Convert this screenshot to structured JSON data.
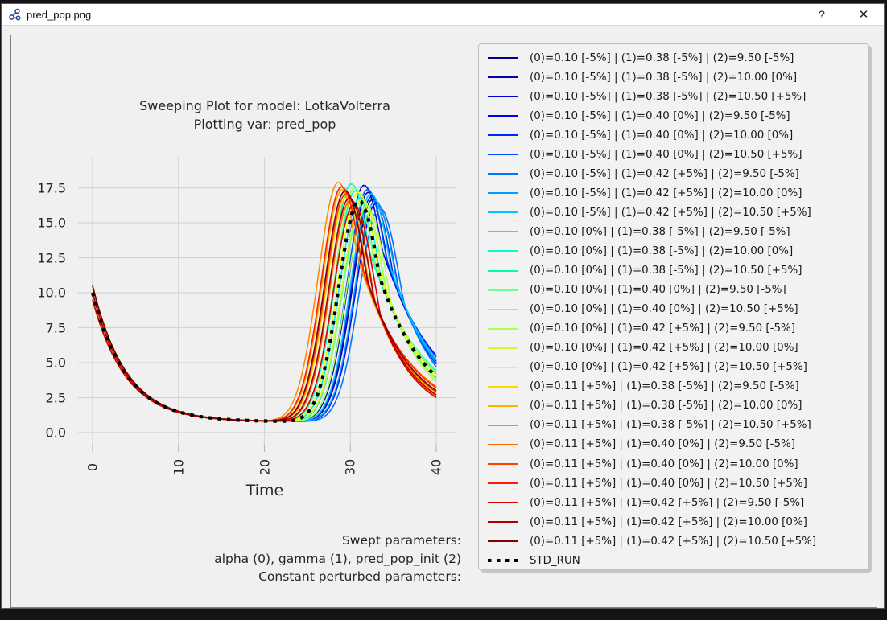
{
  "window": {
    "title": "pred_pop.png",
    "help_label": "?",
    "close_label": "✕"
  },
  "plot": {
    "title_line1": "Sweeping Plot for model: LotkaVolterra",
    "title_line2": "Plotting var: pred_pop",
    "xlabel": "Time",
    "x_ticks": [
      "0",
      "10",
      "20",
      "30",
      "40"
    ],
    "y_ticks": [
      "17.5",
      "15.0",
      "12.5",
      "10.0",
      "7.5",
      "5.0",
      "2.5",
      "0.0"
    ],
    "annotation_lines": [
      "Swept parameters:",
      "alpha (0), gamma (1), pred_pop_init (2)",
      "Constant perturbed parameters:"
    ]
  },
  "chart_data": {
    "type": "line",
    "title": "Sweeping Plot for model: LotkaVolterra — Plotting var: pred_pop",
    "xlabel": "Time",
    "ylabel": "",
    "x_range": [
      0,
      40
    ],
    "x_tick_values": [
      0,
      10,
      20,
      30,
      40
    ],
    "y_tick_values": [
      0.0,
      2.5,
      5.0,
      7.5,
      10.0,
      12.5,
      15.0,
      17.5
    ],
    "grid": true,
    "legend_position": "upper right, outside plot",
    "curve_shape_note": "All curves start at pred_pop_init (~9.5-10.5) at t=0, decay to a minimum of ~0.8 between t=10 and t=22, rise to a single sharp peak (~16.1-17.9) between t=28.6 and t=33.4, then fall to ~2.5-5.5 at t=40. Curves with alpha +5% (reds) peak earliest, alpha -5% (blues) peak latest.",
    "minimum_value": 0.8,
    "series": [
      {
        "label": "(0)=0.10 [-5%] | (1)=0.38 [-5%] | (2)=9.50 [-5%]",
        "color": "#000080",
        "init": 9.5,
        "peak_time": 32.6,
        "peak_value": 16.7,
        "end_value": 5.0
      },
      {
        "label": "(0)=0.10 [-5%] | (1)=0.38 [-5%] | (2)=10.00 [0%]",
        "color": "#0000AE",
        "init": 10.0,
        "peak_time": 32.1,
        "peak_value": 17.2,
        "end_value": 5.2
      },
      {
        "label": "(0)=0.10 [-5%] | (1)=0.38 [-5%] | (2)=10.50 [+5%]",
        "color": "#0000DC",
        "init": 10.5,
        "peak_time": 31.6,
        "peak_value": 17.7,
        "end_value": 5.5
      },
      {
        "label": "(0)=0.10 [-5%] | (1)=0.40 [0%] | (2)=9.50 [-5%]",
        "color": "#0000FF",
        "init": 9.5,
        "peak_time": 33.0,
        "peak_value": 16.4,
        "end_value": 4.9
      },
      {
        "label": "(0)=0.10 [-5%] | (1)=0.40 [0%] | (2)=10.00 [0%]",
        "color": "#0024FF",
        "init": 10.0,
        "peak_time": 32.5,
        "peak_value": 16.9,
        "end_value": 5.1
      },
      {
        "label": "(0)=0.10 [-5%] | (1)=0.40 [0%] | (2)=10.50 [+5%]",
        "color": "#004DFF",
        "init": 10.5,
        "peak_time": 32.0,
        "peak_value": 17.4,
        "end_value": 5.4
      },
      {
        "label": "(0)=0.10 [-5%] | (1)=0.42 [+5%] | (2)=9.50 [-5%]",
        "color": "#0075FF",
        "init": 9.5,
        "peak_time": 33.4,
        "peak_value": 16.1,
        "end_value": 4.7
      },
      {
        "label": "(0)=0.10 [-5%] | (1)=0.42 [+5%] | (2)=10.00 [0%]",
        "color": "#009EFF",
        "init": 10.0,
        "peak_time": 32.9,
        "peak_value": 16.6,
        "end_value": 5.0
      },
      {
        "label": "(0)=0.10 [-5%] | (1)=0.42 [+5%] | (2)=10.50 [+5%]",
        "color": "#00C7FF",
        "init": 10.5,
        "peak_time": 32.4,
        "peak_value": 17.1,
        "end_value": 5.2
      },
      {
        "label": "(0)=0.10 [0%] | (1)=0.38 [-5%] | (2)=9.50 [-5%]",
        "color": "#00F0EF",
        "init": 9.5,
        "peak_time": 31.1,
        "peak_value": 16.8,
        "end_value": 3.9
      },
      {
        "label": "(0)=0.10 [0%] | (1)=0.38 [-5%] | (2)=10.00 [0%]",
        "color": "#00FFCE",
        "init": 10.0,
        "peak_time": 30.6,
        "peak_value": 17.3,
        "end_value": 4.2
      },
      {
        "label": "(0)=0.10 [0%] | (1)=0.38 [-5%] | (2)=10.50 [+5%]",
        "color": "#00FFAD",
        "init": 10.5,
        "peak_time": 30.1,
        "peak_value": 17.8,
        "end_value": 4.4
      },
      {
        "label": "(0)=0.10 [0%] | (1)=0.40 [0%] | (2)=9.50 [-5%]",
        "color": "#6BFF8C",
        "init": 9.5,
        "peak_time": 31.5,
        "peak_value": 16.5,
        "end_value": 3.8
      },
      {
        "label": "(0)=0.10 [0%] | (1)=0.40 [0%] | (2)=10.50 [+5%]",
        "color": "#8CFF6B",
        "init": 10.5,
        "peak_time": 30.5,
        "peak_value": 17.5,
        "end_value": 4.3
      },
      {
        "label": "(0)=0.10 [0%] | (1)=0.42 [+5%] | (2)=9.50 [-5%]",
        "color": "#ADFF4A",
        "init": 9.5,
        "peak_time": 31.9,
        "peak_value": 16.2,
        "end_value": 3.6
      },
      {
        "label": "(0)=0.10 [0%] | (1)=0.42 [+5%] | (2)=10.00 [0%]",
        "color": "#CEFF29",
        "init": 10.0,
        "peak_time": 31.4,
        "peak_value": 16.7,
        "end_value": 3.9
      },
      {
        "label": "(0)=0.10 [0%] | (1)=0.42 [+5%] | (2)=10.50 [+5%]",
        "color": "#EFFF08",
        "init": 10.5,
        "peak_time": 30.9,
        "peak_value": 17.2,
        "end_value": 4.1
      },
      {
        "label": "(0)=0.11 [+5%] | (1)=0.38 [-5%] | (2)=9.50 [-5%]",
        "color": "#FFD900",
        "init": 9.5,
        "peak_time": 29.6,
        "peak_value": 16.9,
        "end_value": 2.8
      },
      {
        "label": "(0)=0.11 [+5%] | (1)=0.38 [-5%] | (2)=10.00 [0%]",
        "color": "#FFB300",
        "init": 10.0,
        "peak_time": 29.1,
        "peak_value": 17.4,
        "end_value": 3.0
      },
      {
        "label": "(0)=0.11 [+5%] | (1)=0.38 [-5%] | (2)=10.50 [+5%]",
        "color": "#FF8E00",
        "init": 10.5,
        "peak_time": 28.6,
        "peak_value": 17.9,
        "end_value": 3.3
      },
      {
        "label": "(0)=0.11 [+5%] | (1)=0.40 [0%] | (2)=9.50 [-5%]",
        "color": "#FF6800",
        "init": 9.5,
        "peak_time": 30.0,
        "peak_value": 16.6,
        "end_value": 2.6
      },
      {
        "label": "(0)=0.11 [+5%] | (1)=0.40 [0%] | (2)=10.00 [0%]",
        "color": "#FF4200",
        "init": 10.0,
        "peak_time": 29.5,
        "peak_value": 17.1,
        "end_value": 2.9
      },
      {
        "label": "(0)=0.11 [+5%] | (1)=0.40 [0%] | (2)=10.50 [+5%]",
        "color": "#FF1C00",
        "init": 10.5,
        "peak_time": 29.0,
        "peak_value": 17.6,
        "end_value": 3.2
      },
      {
        "label": "(0)=0.11 [+5%] | (1)=0.42 [+5%] | (2)=9.50 [-5%]",
        "color": "#DC0000",
        "init": 9.5,
        "peak_time": 30.4,
        "peak_value": 16.3,
        "end_value": 2.5
      },
      {
        "label": "(0)=0.11 [+5%] | (1)=0.42 [+5%] | (2)=10.00 [0%]",
        "color": "#AE0000",
        "init": 10.0,
        "peak_time": 29.9,
        "peak_value": 16.8,
        "end_value": 2.7
      },
      {
        "label": "(0)=0.11 [+5%] | (1)=0.42 [+5%] | (2)=10.50 [+5%]",
        "color": "#800000",
        "init": 10.5,
        "peak_time": 29.4,
        "peak_value": 17.3,
        "end_value": 3.0
      }
    ],
    "std_run": {
      "label": "STD_RUN",
      "color": "#000000",
      "style": "dotted",
      "init": 10.0,
      "peak_time": 31.0,
      "peak_value": 16.6,
      "end_value": 4.0
    }
  }
}
